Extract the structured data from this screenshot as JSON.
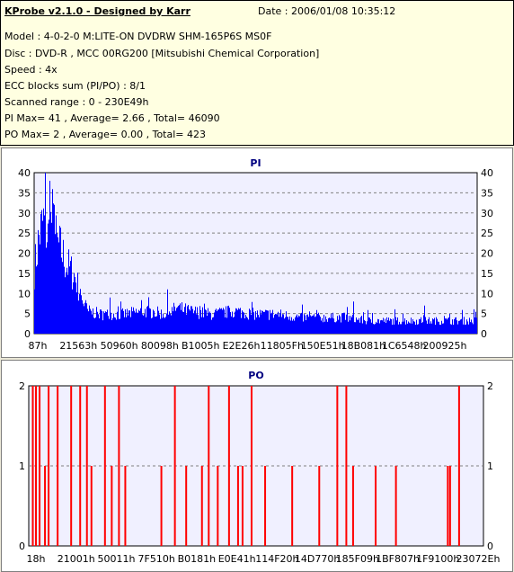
{
  "header": {
    "title": "KProbe v2.1.0 - Designed by Karr",
    "date": "Date : 2006/01/08 10:35:12"
  },
  "info": {
    "model": "Model : 4-0-2-0 M:LITE-ON DVDRW SHM-165P6S MS0F",
    "disc": "Disc : DVD-R , MCC 00RG200  [Mitsubishi Chemical Corporation]",
    "speed": "Speed : 4x",
    "ecc": "ECC blocks sum (PI/PO) : 8/1",
    "range": "Scanned range : 0 - 230E49h",
    "pi": "PI Max= 41 , Average= 2.66 , Total= 46090",
    "po": "PO Max= 2 , Average= 0.00 , Total= 423"
  },
  "colors": {
    "pi": "#0000ff",
    "po": "#ff0000",
    "plot_bg": "#f0f0ff",
    "info_bg": "#ffffe1",
    "title": "#000080"
  },
  "chart_data": [
    {
      "type": "bar",
      "title": "PI",
      "ylim": [
        0,
        40
      ],
      "yticks": [
        "0",
        "5",
        "10",
        "15",
        "20",
        "25",
        "30",
        "35",
        "40"
      ],
      "xticks": [
        "87h",
        "21563h",
        "50960h",
        "80098h",
        "B1005h",
        "E2E26h",
        "11805Fh",
        "150E51h",
        "18B081h",
        "1C6548h",
        "200925h"
      ],
      "grid": true,
      "notes": "Dense bars; approximate envelope sampled across scanned range (fraction of range, value).",
      "envelope": [
        [
          0.0,
          20
        ],
        [
          0.01,
          30
        ],
        [
          0.02,
          35
        ],
        [
          0.03,
          30
        ],
        [
          0.04,
          36
        ],
        [
          0.05,
          28
        ],
        [
          0.06,
          26
        ],
        [
          0.07,
          22
        ],
        [
          0.08,
          20
        ],
        [
          0.09,
          18
        ],
        [
          0.1,
          14
        ],
        [
          0.11,
          10
        ],
        [
          0.12,
          7
        ],
        [
          0.15,
          6
        ],
        [
          0.2,
          6
        ],
        [
          0.25,
          7
        ],
        [
          0.3,
          6
        ],
        [
          0.32,
          8
        ],
        [
          0.35,
          7
        ],
        [
          0.4,
          6
        ],
        [
          0.45,
          7
        ],
        [
          0.5,
          6
        ],
        [
          0.55,
          6
        ],
        [
          0.6,
          5
        ],
        [
          0.65,
          5
        ],
        [
          0.7,
          5
        ],
        [
          0.75,
          4
        ],
        [
          0.8,
          4
        ],
        [
          0.85,
          4
        ],
        [
          0.9,
          4
        ],
        [
          0.95,
          4
        ],
        [
          1.0,
          4
        ]
      ],
      "spikes": [
        [
          0.025,
          41
        ],
        [
          0.035,
          38
        ],
        [
          0.045,
          32
        ],
        [
          0.3,
          11
        ],
        [
          0.17,
          9
        ],
        [
          0.72,
          8
        ],
        [
          0.88,
          7
        ]
      ]
    },
    {
      "type": "bar",
      "title": "PO",
      "ylim": [
        0,
        2
      ],
      "yticks": [
        "0",
        "1",
        "2"
      ],
      "xticks": [
        "18h",
        "21001h",
        "50011h",
        "7F510h",
        "B0181h",
        "E0E41h",
        "114F20h",
        "14D770h",
        "185F09h",
        "1BF807h",
        "1F9100h",
        "23072Eh"
      ],
      "grid": true,
      "positions": [
        0.005,
        0.012,
        0.02,
        0.032,
        0.04,
        0.06,
        0.09,
        0.11,
        0.125,
        0.135,
        0.165,
        0.18,
        0.196,
        0.21,
        0.29,
        0.32,
        0.345,
        0.38,
        0.395,
        0.415,
        0.44,
        0.46,
        0.47,
        0.49,
        0.52,
        0.58,
        0.64,
        0.68,
        0.7,
        0.715,
        0.765,
        0.81,
        0.925,
        0.93,
        0.95
      ],
      "values": [
        2,
        2,
        2,
        1,
        2,
        2,
        2,
        2,
        2,
        1,
        2,
        1,
        2,
        1,
        1,
        2,
        1,
        1,
        2,
        1,
        2,
        1,
        1,
        2,
        1,
        1,
        1,
        2,
        2,
        1,
        1,
        1,
        1,
        1,
        2
      ]
    }
  ]
}
